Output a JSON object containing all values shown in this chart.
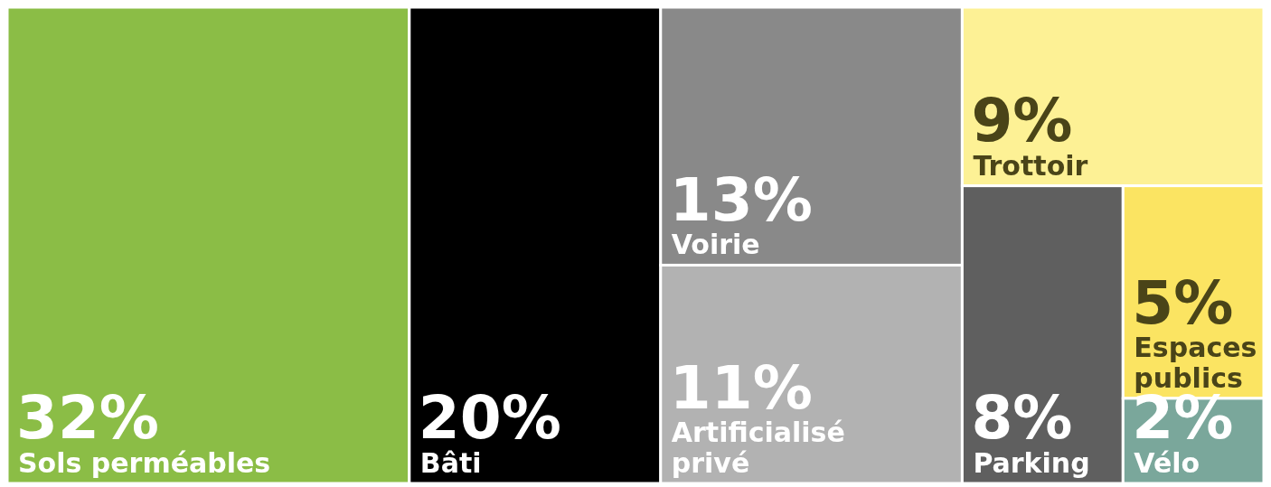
{
  "chart_data": {
    "type": "other",
    "categories": [
      "Sols perméables",
      "Bâti",
      "Voirie",
      "Artificialisé privé",
      "Trottoir",
      "Parking",
      "Espaces publics",
      "Vélo"
    ],
    "values": [
      32,
      20,
      13,
      11,
      9,
      8,
      5,
      2
    ],
    "value_labels": [
      "32%",
      "20%",
      "13%",
      "11%",
      "9%",
      "8%",
      "5%",
      "2%"
    ],
    "colors": [
      "#8bbd46",
      "#000000",
      "#898989",
      "#b2b2b2",
      "#fdf195",
      "#5f5f5f",
      "#fbe462",
      "#7aa79b"
    ]
  }
}
